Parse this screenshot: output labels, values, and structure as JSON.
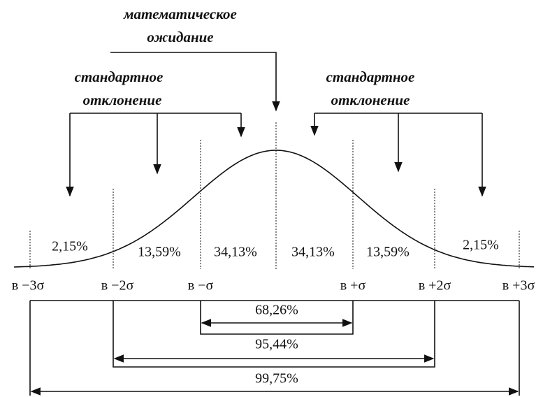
{
  "annotations": {
    "mean": [
      "математическое",
      "ожидание"
    ],
    "std_left": [
      "стандартное",
      "отклонение"
    ],
    "std_right": [
      "стандартное",
      "отклонение"
    ]
  },
  "segments": [
    "2,15%",
    "13,59%",
    "34,13%",
    "34,13%",
    "13,59%",
    "2,15%"
  ],
  "axis_labels": [
    "в −3σ",
    "в −2σ",
    "в −σ",
    "в +σ",
    "в +2σ",
    "в +3σ"
  ],
  "intervals": [
    "68,26%",
    "95,44%",
    "99,75%"
  ]
}
